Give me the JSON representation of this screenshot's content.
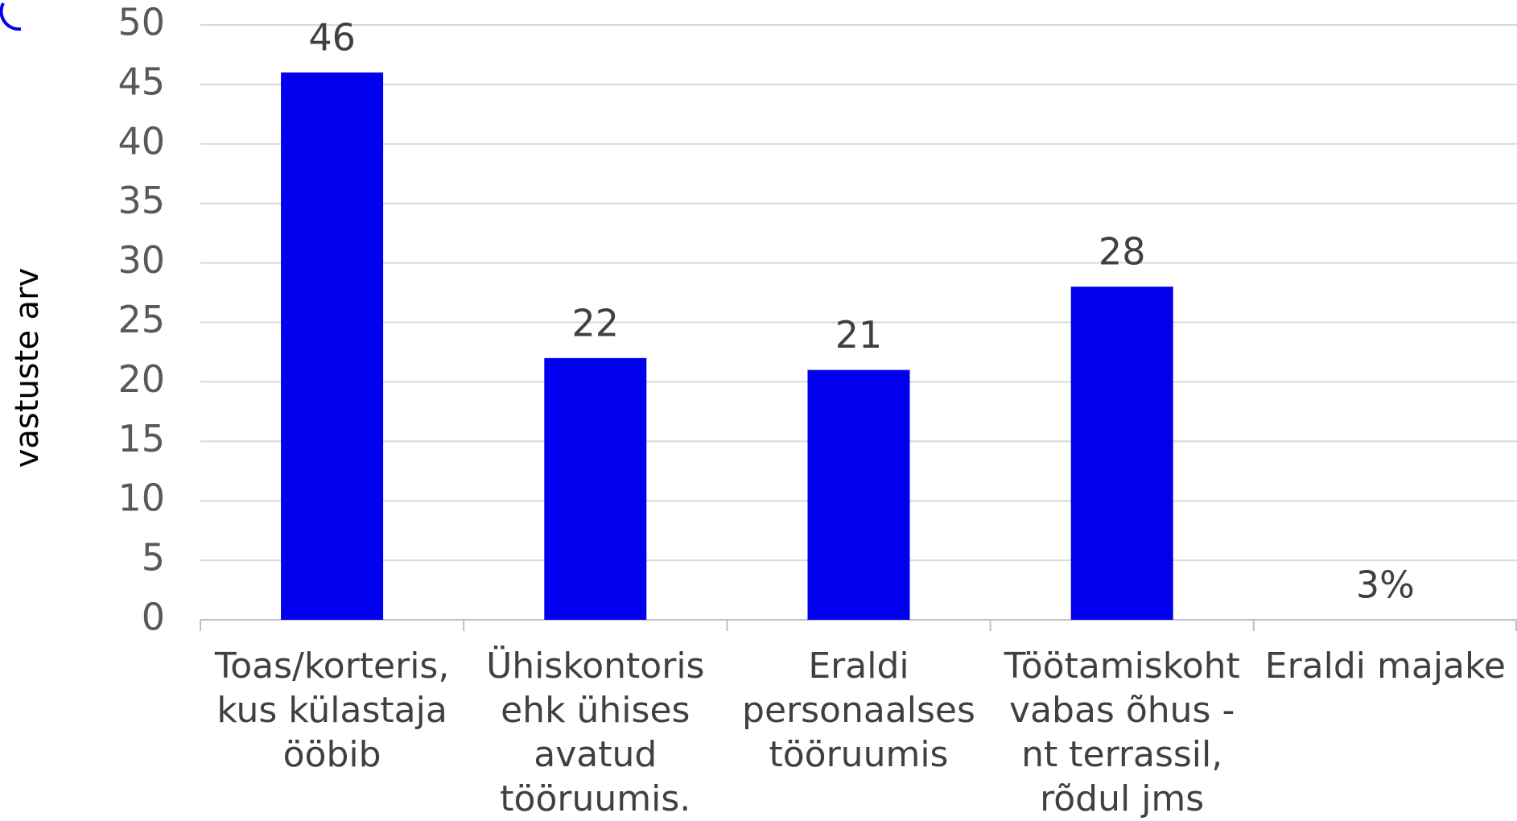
{
  "chart_data": {
    "type": "bar",
    "y_axis_label": "vastuste arv",
    "categories": [
      "Toas/korteris, kus külastaja ööbib",
      "Ühiskontoris ehk ühises avatud tööruumis.",
      "Eraldi personaalses tööruumis",
      "Töötamiskoht vabas õhus - nt terrassil, rõdul jms",
      "Eraldi majake"
    ],
    "values": [
      46,
      22,
      21,
      28,
      null
    ],
    "annotations": [
      {
        "category": 4,
        "text": "3%"
      }
    ],
    "color": "#0000ee",
    "ylim": [
      0,
      50
    ],
    "yticks": [
      0,
      5,
      10,
      15,
      20,
      25,
      30,
      35,
      40,
      45,
      50
    ],
    "grid": true
  }
}
